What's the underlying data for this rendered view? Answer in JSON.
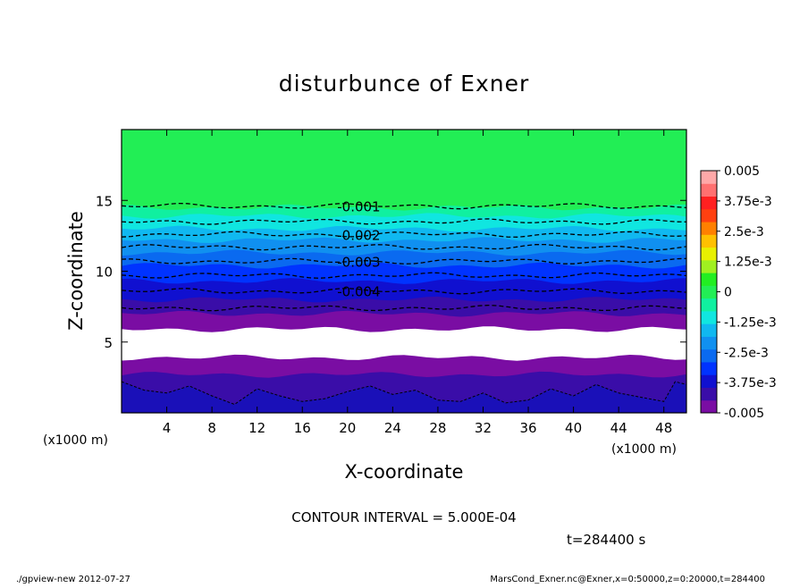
{
  "chart_data": {
    "type": "heatmap",
    "title": "disturbunce of Exner",
    "xlabel": "X-coordinate",
    "ylabel": "Z-coordinate",
    "x_unit": "(x1000 m)",
    "y_unit": "(x1000 m)",
    "xlim": [
      0,
      50
    ],
    "ylim": [
      0,
      20
    ],
    "x_ticks": [
      4,
      8,
      12,
      16,
      20,
      24,
      28,
      32,
      36,
      40,
      44,
      48
    ],
    "y_ticks": [
      5,
      10,
      15
    ],
    "contour_interval_text": "CONTOUR INTERVAL = 5.000E-04",
    "time_text": "t=284400 s",
    "footer_left": "./gpview-new   2012-07-27",
    "footer_right": "MarsCond_Exner.nc@Exner,x=0:50000,z=0:20000,t=284400",
    "colorbar": {
      "min": -0.005,
      "max": 0.005,
      "tick_labels": [
        "0.005",
        "3.75e-3",
        "2.5e-3",
        "1.25e-3",
        "0",
        "-1.25e-3",
        "-2.5e-3",
        "-3.75e-3",
        "-0.005"
      ],
      "colors": [
        "#7a0da3",
        "#3a0da8",
        "#1010d0",
        "#0033ff",
        "#0a6af0",
        "#1090f0",
        "#10b8f0",
        "#10e6e0",
        "#10f0a0",
        "#22ee55",
        "#22ee22",
        "#a0f020",
        "#e8f000",
        "#ffc000",
        "#ff8000",
        "#ff4010",
        "#ff2020",
        "#ff7070",
        "#ffa8a8"
      ]
    },
    "layers": [
      {
        "z_bottom": 14.5,
        "z_top": 20.0,
        "value": 0.0,
        "color": "#22ee55"
      },
      {
        "z_bottom": 13.9,
        "z_top": 14.5,
        "value": -0.00075,
        "color": "#10f0a0"
      },
      {
        "z_bottom": 13.0,
        "z_top": 13.9,
        "value": -0.0015,
        "color": "#10e6e0"
      },
      {
        "z_bottom": 12.2,
        "z_top": 13.0,
        "value": -0.002,
        "color": "#10b8f0"
      },
      {
        "z_bottom": 11.3,
        "z_top": 12.2,
        "value": -0.0025,
        "color": "#1090f0"
      },
      {
        "z_bottom": 10.4,
        "z_top": 11.3,
        "value": -0.003,
        "color": "#0a6af0"
      },
      {
        "z_bottom": 9.3,
        "z_top": 10.4,
        "value": -0.0035,
        "color": "#0033ff"
      },
      {
        "z_bottom": 8.0,
        "z_top": 9.3,
        "value": -0.004,
        "color": "#1010d0"
      },
      {
        "z_bottom": 7.0,
        "z_top": 8.0,
        "value": -0.0045,
        "color": "#3a0da8"
      },
      {
        "z_bottom": 5.9,
        "z_top": 7.0,
        "value": -0.005,
        "color": "#7a0da3"
      },
      {
        "z_bottom": 3.9,
        "z_top": 5.9,
        "value": null,
        "color": "#ffffff"
      },
      {
        "z_bottom": 2.7,
        "z_top": 3.9,
        "value": -0.005,
        "color": "#7a0da3"
      },
      {
        "z_bottom": 0.0,
        "z_top": 2.7,
        "value": -0.0055,
        "color": "#3a0da8"
      }
    ],
    "contours": [
      {
        "z": 14.6,
        "label": "-0.001"
      },
      {
        "z": 13.5,
        "label": null
      },
      {
        "z": 12.6,
        "label": "-0.002"
      },
      {
        "z": 11.7,
        "label": null
      },
      {
        "z": 10.7,
        "label": "-0.003"
      },
      {
        "z": 9.7,
        "label": null
      },
      {
        "z": 8.6,
        "label": "-0.004"
      },
      {
        "z": 7.4,
        "label": null
      }
    ],
    "bottom_deep_region": {
      "color": "#1a10b8",
      "z_profile": [
        [
          0,
          2.2
        ],
        [
          2,
          1.6
        ],
        [
          4,
          1.4
        ],
        [
          6,
          1.9
        ],
        [
          8,
          1.2
        ],
        [
          10,
          0.6
        ],
        [
          12,
          1.7
        ],
        [
          14,
          1.2
        ],
        [
          16,
          0.8
        ],
        [
          18,
          1.0
        ],
        [
          20,
          1.5
        ],
        [
          22,
          1.9
        ],
        [
          24,
          1.3
        ],
        [
          26,
          1.6
        ],
        [
          28,
          0.9
        ],
        [
          30,
          0.8
        ],
        [
          32,
          1.4
        ],
        [
          34,
          0.7
        ],
        [
          36,
          0.9
        ],
        [
          38,
          1.7
        ],
        [
          40,
          1.2
        ],
        [
          42,
          2.0
        ],
        [
          44,
          1.4
        ],
        [
          46,
          1.1
        ],
        [
          48,
          0.8
        ],
        [
          49,
          2.2
        ],
        [
          50,
          2.0
        ]
      ]
    }
  }
}
